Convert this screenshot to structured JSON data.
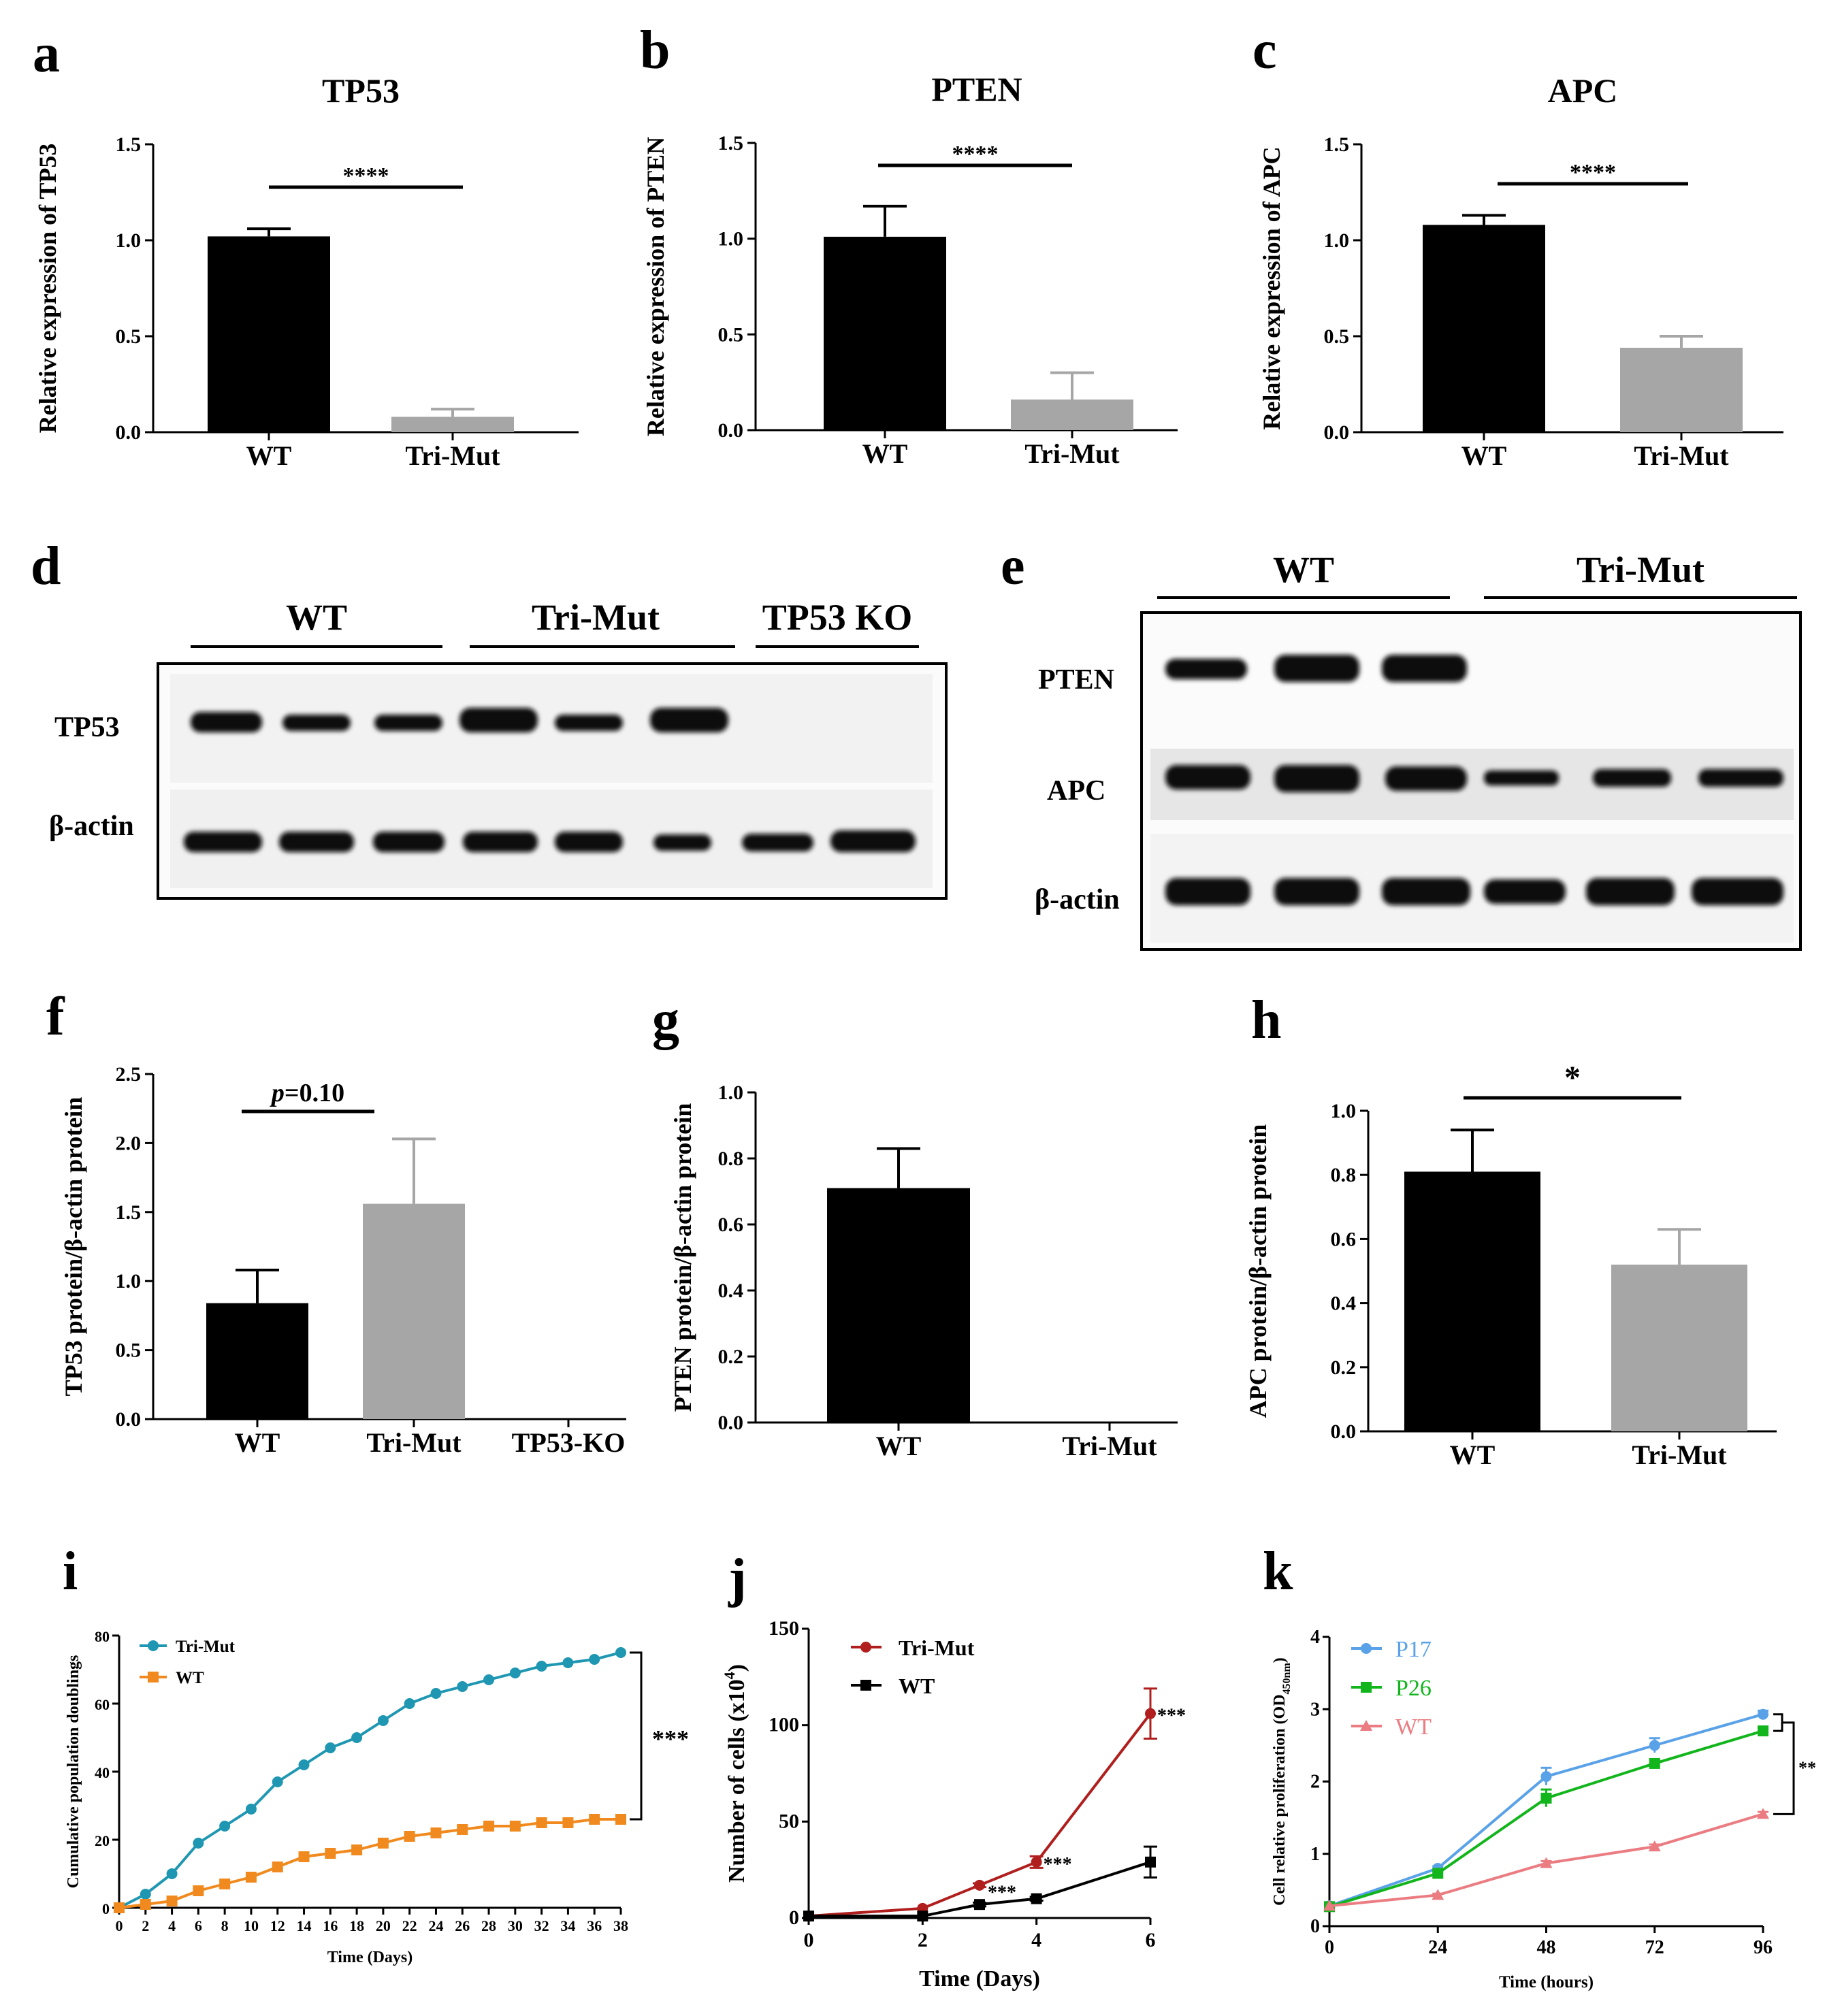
{
  "colors": {
    "wt_bar": "#000000",
    "mut_bar": "#a6a6a6",
    "i_trimut": "#1f97b2",
    "i_wt": "#f08a1e",
    "j_trimut": "#b01e1e",
    "j_wt": "#000000",
    "k_p17": "#5aa2e8",
    "k_p26": "#12b51c",
    "k_wt": "#ea7c82"
  },
  "blots": {
    "d": {
      "panel_label": "d",
      "groups": [
        "WT",
        "Tri-Mut",
        "TP53 KO"
      ],
      "rows": [
        "TP53",
        "β-actin"
      ]
    },
    "e": {
      "panel_label": "e",
      "groups": [
        "WT",
        "Tri-Mut"
      ],
      "rows": [
        "PTEN",
        "APC",
        "β-actin"
      ]
    }
  },
  "chart_data": [
    {
      "id": "a",
      "panel_label": "a",
      "type": "bar",
      "title": "TP53",
      "ylabel": "Relative expression of  TP53",
      "categories": [
        "WT",
        "Tri-Mut"
      ],
      "values": [
        1.02,
        0.08
      ],
      "errors": [
        0.04,
        0.04
      ],
      "ylim": [
        0,
        1.5
      ],
      "yticks": [
        0.0,
        0.5,
        1.0,
        1.5
      ],
      "ytick_labels": [
        "0.0",
        "0.5",
        "1.0",
        "1.5"
      ],
      "significance": "****"
    },
    {
      "id": "b",
      "panel_label": "b",
      "type": "bar",
      "title": "PTEN",
      "ylabel": "Relative expression of  PTEN",
      "categories": [
        "WT",
        "Tri-Mut"
      ],
      "values": [
        1.01,
        0.16
      ],
      "errors": [
        0.16,
        0.14
      ],
      "ylim": [
        0,
        1.5
      ],
      "yticks": [
        0.0,
        0.5,
        1.0,
        1.5
      ],
      "ytick_labels": [
        "0.0",
        "0.5",
        "1.0",
        "1.5"
      ],
      "significance": "****"
    },
    {
      "id": "c",
      "panel_label": "c",
      "type": "bar",
      "title": "APC",
      "ylabel": "Relative expression of  APC",
      "categories": [
        "WT",
        "Tri-Mut"
      ],
      "values": [
        1.08,
        0.44
      ],
      "errors": [
        0.05,
        0.06
      ],
      "ylim": [
        0,
        1.5
      ],
      "yticks": [
        0.0,
        0.5,
        1.0,
        1.5
      ],
      "ytick_labels": [
        "0.0",
        "0.5",
        "1.0",
        "1.5"
      ],
      "significance": "****"
    },
    {
      "id": "f",
      "panel_label": "f",
      "type": "bar",
      "title": "",
      "ylabel": "TP53 protein/β-actin protein",
      "categories": [
        "WT",
        "Tri-Mut",
        "TP53-KO"
      ],
      "values": [
        0.84,
        1.56,
        0.0
      ],
      "errors": [
        0.24,
        0.47,
        0.0
      ],
      "ylim": [
        0,
        2.5
      ],
      "yticks": [
        0.0,
        0.5,
        1.0,
        1.5,
        2.0,
        2.5
      ],
      "ytick_labels": [
        "0.0",
        "0.5",
        "1.0",
        "1.5",
        "2.0",
        "2.5"
      ],
      "significance_prefix": "p",
      "significance": "=0.10"
    },
    {
      "id": "g",
      "panel_label": "g",
      "type": "bar",
      "title": "",
      "ylabel": "PTEN protein/β-actin protein",
      "categories": [
        "WT",
        "Tri-Mut"
      ],
      "values": [
        0.71,
        0.0
      ],
      "errors": [
        0.12,
        0.0
      ],
      "ylim": [
        0,
        1.0
      ],
      "yticks": [
        0.0,
        0.2,
        0.4,
        0.6,
        0.8,
        1.0
      ],
      "ytick_labels": [
        "0.0",
        "0.2",
        "0.4",
        "0.6",
        "0.8",
        "1.0"
      ],
      "significance": ""
    },
    {
      "id": "h",
      "panel_label": "h",
      "type": "bar",
      "title": "",
      "ylabel": "APC protein/β-actin protein",
      "categories": [
        "WT",
        "Tri-Mut"
      ],
      "values": [
        0.81,
        0.52
      ],
      "errors": [
        0.13,
        0.11
      ],
      "ylim": [
        0,
        1.0
      ],
      "yticks": [
        0.0,
        0.2,
        0.4,
        0.6,
        0.8,
        1.0
      ],
      "ytick_labels": [
        "0.0",
        "0.2",
        "0.4",
        "0.6",
        "0.8",
        "1.0"
      ],
      "significance": "*"
    },
    {
      "id": "i",
      "panel_label": "i",
      "type": "line",
      "xlabel": "Time (Days)",
      "ylabel": "Cumulative population doublings",
      "x": [
        0,
        2,
        4,
        6,
        8,
        10,
        12,
        14,
        16,
        18,
        20,
        22,
        24,
        26,
        28,
        30,
        32,
        34,
        36,
        38
      ],
      "xticks": [
        0,
        2,
        4,
        6,
        8,
        10,
        12,
        14,
        16,
        18,
        20,
        22,
        24,
        26,
        28,
        30,
        32,
        34,
        36,
        38
      ],
      "xtick_labels": [
        "0",
        "2",
        "4",
        "6",
        "8",
        "10",
        "12",
        "14",
        "16",
        "18",
        "20",
        "22",
        "24",
        "26",
        "28",
        "30",
        "32",
        "34",
        "36",
        "38"
      ],
      "xlim": [
        0,
        38
      ],
      "ylim": [
        0,
        80
      ],
      "yticks": [
        0,
        20,
        40,
        60,
        80
      ],
      "ytick_labels": [
        "0",
        "20",
        "40",
        "60",
        "80"
      ],
      "series": [
        {
          "name": "Tri-Mut",
          "values": [
            0,
            4,
            10,
            19,
            24,
            29,
            37,
            42,
            47,
            50,
            55,
            60,
            63,
            65,
            67,
            69,
            71,
            72,
            73,
            75
          ]
        },
        {
          "name": "WT",
          "values": [
            0,
            1,
            2,
            5,
            7,
            9,
            12,
            15,
            16,
            17,
            19,
            21,
            22,
            23,
            24,
            24,
            25,
            25,
            26,
            26
          ]
        }
      ],
      "significance": "***"
    },
    {
      "id": "j",
      "panel_label": "j",
      "type": "line",
      "xlabel": "Time (Days)",
      "ylabel_main": "Number of cells (x10",
      "ylabel_sup": "4",
      "ylabel_end": ")",
      "xlim": [
        0,
        6
      ],
      "ylim": [
        0,
        150
      ],
      "xticks": [
        0,
        2,
        4,
        6
      ],
      "xtick_labels": [
        "0",
        "2",
        "4",
        "6"
      ],
      "yticks": [
        0,
        50,
        100,
        150
      ],
      "ytick_labels": [
        "0",
        "50",
        "100",
        "150"
      ],
      "series": [
        {
          "name": "Tri-Mut",
          "x": [
            0,
            2,
            3,
            4,
            6
          ],
          "values": [
            1,
            5,
            17,
            29,
            106
          ],
          "errors": [
            0,
            0,
            1,
            3,
            13
          ]
        },
        {
          "name": "WT",
          "x": [
            0,
            2,
            3,
            4,
            6
          ],
          "values": [
            1,
            1,
            7,
            10,
            29
          ],
          "errors": [
            0,
            0,
            1,
            1,
            8
          ]
        }
      ],
      "annotations": [
        "***",
        "***",
        "***"
      ]
    },
    {
      "id": "k",
      "panel_label": "k",
      "type": "line",
      "xlabel": "Time (hours)",
      "ylabel_main": "Cell relative proliferation (OD",
      "ylabel_sub": "450nm",
      "ylabel_end": ")",
      "xlim": [
        0,
        96
      ],
      "ylim": [
        0,
        4
      ],
      "xticks": [
        0,
        24,
        48,
        72,
        96
      ],
      "xtick_labels": [
        "0",
        "24",
        "48",
        "72",
        "96"
      ],
      "yticks": [
        0,
        1,
        2,
        3,
        4
      ],
      "ytick_labels": [
        "0",
        "1",
        "2",
        "3",
        "4"
      ],
      "series": [
        {
          "name": "P17",
          "x": [
            0,
            24,
            48,
            72,
            96
          ],
          "values": [
            0.28,
            0.8,
            2.07,
            2.5,
            2.93
          ],
          "errors": [
            0,
            0.03,
            0.12,
            0.1,
            0.05
          ]
        },
        {
          "name": "P26",
          "x": [
            0,
            24,
            48,
            72,
            96
          ],
          "values": [
            0.27,
            0.73,
            1.77,
            2.25,
            2.7
          ],
          "errors": [
            0,
            0.03,
            0.12,
            0.06,
            0.04
          ]
        },
        {
          "name": "WT",
          "x": [
            0,
            24,
            48,
            72,
            96
          ],
          "values": [
            0.28,
            0.43,
            0.87,
            1.1,
            1.55
          ],
          "errors": [
            0,
            0.02,
            0.03,
            0.03,
            0.03
          ]
        }
      ],
      "significance": "**"
    }
  ]
}
